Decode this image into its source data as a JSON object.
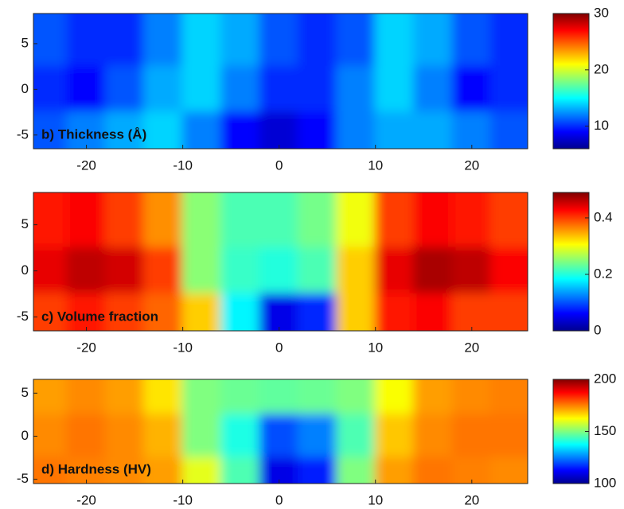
{
  "chart_data": [
    {
      "type": "heatmap",
      "title": "b) Thickness (Å)",
      "colormap": "jet",
      "x": [
        -24,
        -20,
        -16,
        -12,
        -8,
        -4,
        0,
        4,
        8,
        12,
        16,
        20,
        24
      ],
      "y": [
        5,
        0,
        -5
      ],
      "z": [
        [
          11,
          10,
          10,
          12,
          14,
          13,
          11,
          10,
          11,
          14,
          13,
          11,
          10
        ],
        [
          10,
          9,
          11,
          13,
          14,
          12,
          10,
          10,
          12,
          14,
          12,
          9,
          10
        ],
        [
          11,
          12,
          13,
          14,
          12,
          9,
          8,
          9,
          12,
          13,
          13,
          12,
          11
        ]
      ],
      "xlim": [
        -25.5,
        25.8
      ],
      "ylim": [
        -6.5,
        8.3
      ],
      "xticks": [
        -20,
        -10,
        0,
        10,
        20
      ],
      "yticks": [
        -5,
        0,
        5
      ],
      "clim": [
        6,
        30
      ],
      "cticks": [
        10,
        20,
        30
      ]
    },
    {
      "type": "heatmap",
      "title": "c) Volume fraction",
      "colormap": "jet",
      "x": [
        -24,
        -20,
        -16,
        -12,
        -8,
        -4,
        0,
        4,
        8,
        12,
        16,
        20,
        24
      ],
      "y": [
        5,
        0,
        -5
      ],
      "z": [
        [
          0.42,
          0.43,
          0.4,
          0.36,
          0.25,
          0.22,
          0.22,
          0.24,
          0.3,
          0.4,
          0.43,
          0.42,
          0.4
        ],
        [
          0.44,
          0.46,
          0.45,
          0.4,
          0.25,
          0.21,
          0.2,
          0.22,
          0.33,
          0.44,
          0.47,
          0.46,
          0.43
        ],
        [
          0.4,
          0.42,
          0.4,
          0.38,
          0.33,
          0.18,
          0.05,
          0.08,
          0.33,
          0.42,
          0.43,
          0.4,
          0.4
        ]
      ],
      "xlim": [
        -25.5,
        25.8
      ],
      "ylim": [
        -6.5,
        8.5
      ],
      "xticks": [
        -20,
        -10,
        0,
        10,
        20
      ],
      "yticks": [
        -5,
        0,
        5
      ],
      "clim": [
        0,
        0.49
      ],
      "cticks": [
        0,
        0.2,
        0.4
      ]
    },
    {
      "type": "heatmap",
      "title": "d) Hardness (HV)",
      "colormap": "jet",
      "x": [
        -24,
        -20,
        -16,
        -12,
        -8,
        -4,
        0,
        4,
        8,
        12,
        16,
        20,
        24
      ],
      "y": [
        5,
        0,
        -5
      ],
      "z": [
        [
          172,
          174,
          172,
          165,
          150,
          148,
          147,
          148,
          150,
          162,
          172,
          174,
          175
        ],
        [
          174,
          176,
          174,
          170,
          150,
          140,
          120,
          125,
          145,
          168,
          174,
          176,
          176
        ],
        [
          176,
          175,
          174,
          172,
          160,
          145,
          110,
          115,
          150,
          172,
          176,
          175,
          174
        ]
      ],
      "xlim": [
        -25.5,
        25.8
      ],
      "ylim": [
        -5.5,
        6.6
      ],
      "xticks": [
        -20,
        -10,
        0,
        10,
        20
      ],
      "yticks": [
        -5,
        0,
        5
      ],
      "clim": [
        100,
        200
      ],
      "cticks": [
        100,
        150,
        200
      ]
    }
  ]
}
